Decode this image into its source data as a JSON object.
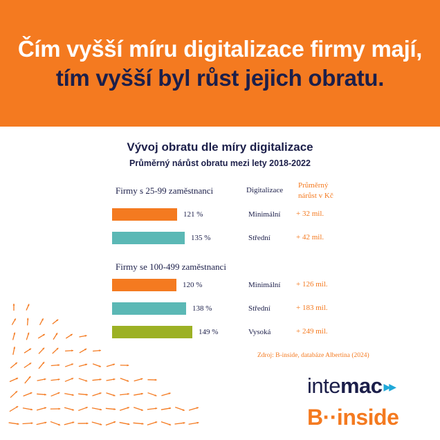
{
  "header": {
    "line1": "Čím vyšší míru digitalizace firmy mají,",
    "line2": "tím vyšší byl růst jejich obratu."
  },
  "chart_data": {
    "type": "bar",
    "orientation": "horizontal",
    "title": "Vývoj obratu dle míry digitalizace",
    "subtitle": "Průměrný nárůst obratu mezi lety 2018-2022",
    "columns": {
      "level": "Digitalizace",
      "growth_line1": "Průměrný",
      "growth_line2": "nárůst v Kč"
    },
    "groups": [
      {
        "name": "Firmy s 25-99 zaměstnanci",
        "bars": [
          {
            "level": "Minimální",
            "value": 121,
            "value_label": "121 %",
            "growth": "+ 32 mil.",
            "color": "#f47a20"
          },
          {
            "level": "Střední",
            "value": 135,
            "value_label": "135 %",
            "growth": "+ 42 mil.",
            "color": "#5bb8b5"
          }
        ]
      },
      {
        "name": "Firmy se 100-499 zaměstnanci",
        "bars": [
          {
            "level": "Minimální",
            "value": 120,
            "value_label": "120 %",
            "growth": "+ 126 mil.",
            "color": "#f47a20"
          },
          {
            "level": "Střední",
            "value": 138,
            "value_label": "138 %",
            "growth": "+ 183 mil.",
            "color": "#5bb8b5"
          },
          {
            "level": "Vysoká",
            "value": 149,
            "value_label": "149 %",
            "growth": "+ 249 mil.",
            "color": "#9cb124"
          }
        ]
      }
    ],
    "source": "Zdroj: B-inside, databáze Albertina (2024)"
  },
  "logos": {
    "intemac_a": "inte",
    "intemac_b": "mac",
    "binside": "B··inside"
  },
  "colors": {
    "accent": "#f47a20",
    "navy": "#1c1f4a",
    "teal": "#5bb8b5",
    "green": "#9cb124"
  }
}
